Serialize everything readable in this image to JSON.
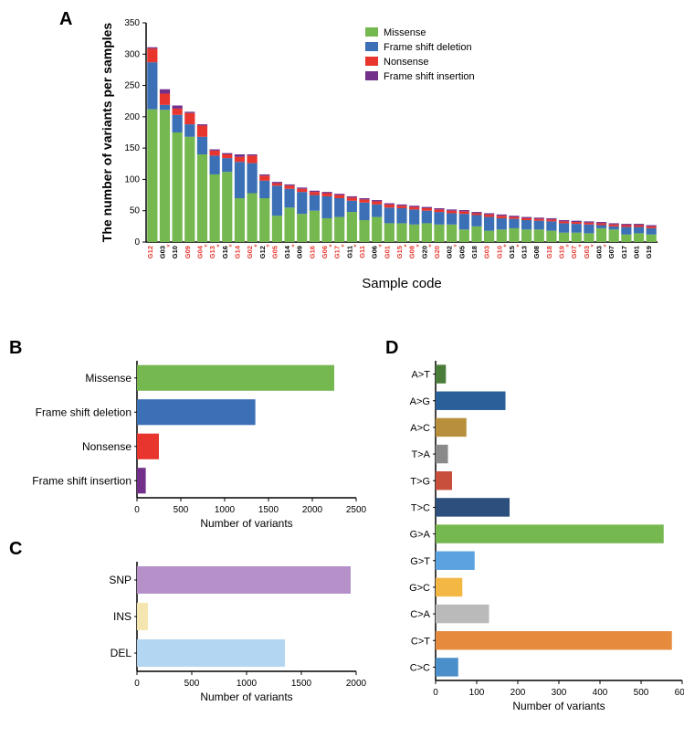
{
  "panelA": {
    "label": "A",
    "ylabel": "The number of variants per samples",
    "xlabel": "Sample code",
    "ylim": [
      0,
      350
    ],
    "ytick_step": 50,
    "colors": {
      "missense": "#75b84f",
      "frameshift_deletion": "#3b6fb6",
      "nonsense": "#e8352e",
      "frameshift_insertion": "#73308a"
    },
    "legend": [
      {
        "label": "Missense",
        "color": "#75b84f"
      },
      {
        "label": "Frame shift deletion",
        "color": "#3b6fb6"
      },
      {
        "label": "Nonsense",
        "color": "#e8352e"
      },
      {
        "label": "Frame shift insertion",
        "color": "#73308a"
      }
    ],
    "samples": [
      {
        "code": "G12",
        "star": true,
        "missense": 212,
        "fsdel": 75,
        "nonsense": 22,
        "fsins": 2
      },
      {
        "code": "G03",
        "star": false,
        "missense": 211,
        "fsdel": 8,
        "nonsense": 18,
        "fsins": 7
      },
      {
        "code": "G10",
        "star": false,
        "missense": 175,
        "fsdel": 28,
        "nonsense": 10,
        "fsins": 5
      },
      {
        "code": "G09",
        "star": true,
        "missense": 168,
        "fsdel": 20,
        "nonsense": 18,
        "fsins": 2
      },
      {
        "code": "G04",
        "star": true,
        "missense": 140,
        "fsdel": 28,
        "nonsense": 18,
        "fsins": 2
      },
      {
        "code": "G13",
        "star": true,
        "missense": 108,
        "fsdel": 30,
        "nonsense": 8,
        "fsins": 2
      },
      {
        "code": "G16",
        "star": false,
        "missense": 112,
        "fsdel": 22,
        "nonsense": 6,
        "fsins": 2
      },
      {
        "code": "G14",
        "star": true,
        "missense": 70,
        "fsdel": 58,
        "nonsense": 8,
        "fsins": 4
      },
      {
        "code": "G02",
        "star": true,
        "missense": 78,
        "fsdel": 48,
        "nonsense": 12,
        "fsins": 2
      },
      {
        "code": "G12",
        "star": false,
        "missense": 70,
        "fsdel": 28,
        "nonsense": 8,
        "fsins": 2
      },
      {
        "code": "G05",
        "star": true,
        "missense": 42,
        "fsdel": 48,
        "nonsense": 4,
        "fsins": 2
      },
      {
        "code": "G14",
        "star": false,
        "missense": 55,
        "fsdel": 30,
        "nonsense": 5,
        "fsins": 2
      },
      {
        "code": "G09",
        "star": false,
        "missense": 45,
        "fsdel": 35,
        "nonsense": 5,
        "fsins": 2
      },
      {
        "code": "G16",
        "star": true,
        "missense": 50,
        "fsdel": 25,
        "nonsense": 5,
        "fsins": 2
      },
      {
        "code": "G06",
        "star": true,
        "missense": 38,
        "fsdel": 35,
        "nonsense": 5,
        "fsins": 2
      },
      {
        "code": "G17",
        "star": true,
        "missense": 40,
        "fsdel": 30,
        "nonsense": 5,
        "fsins": 2
      },
      {
        "code": "G11",
        "star": false,
        "missense": 48,
        "fsdel": 18,
        "nonsense": 5,
        "fsins": 2
      },
      {
        "code": "G11",
        "star": true,
        "missense": 35,
        "fsdel": 28,
        "nonsense": 5,
        "fsins": 2
      },
      {
        "code": "G06",
        "star": false,
        "missense": 40,
        "fsdel": 20,
        "nonsense": 5,
        "fsins": 2
      },
      {
        "code": "G01",
        "star": true,
        "missense": 30,
        "fsdel": 25,
        "nonsense": 5,
        "fsins": 2
      },
      {
        "code": "G15",
        "star": true,
        "missense": 30,
        "fsdel": 24,
        "nonsense": 4,
        "fsins": 2
      },
      {
        "code": "G08",
        "star": true,
        "missense": 28,
        "fsdel": 24,
        "nonsense": 4,
        "fsins": 2
      },
      {
        "code": "G20",
        "star": false,
        "missense": 30,
        "fsdel": 20,
        "nonsense": 4,
        "fsins": 2
      },
      {
        "code": "G20",
        "star": true,
        "missense": 28,
        "fsdel": 20,
        "nonsense": 4,
        "fsins": 2
      },
      {
        "code": "G02",
        "star": false,
        "missense": 28,
        "fsdel": 18,
        "nonsense": 4,
        "fsins": 2
      },
      {
        "code": "G05",
        "star": false,
        "missense": 20,
        "fsdel": 25,
        "nonsense": 4,
        "fsins": 2
      },
      {
        "code": "G18",
        "star": false,
        "missense": 25,
        "fsdel": 18,
        "nonsense": 3,
        "fsins": 2
      },
      {
        "code": "G03",
        "star": true,
        "missense": 18,
        "fsdel": 22,
        "nonsense": 4,
        "fsins": 2
      },
      {
        "code": "G10",
        "star": true,
        "missense": 20,
        "fsdel": 18,
        "nonsense": 4,
        "fsins": 2
      },
      {
        "code": "G15",
        "star": false,
        "missense": 22,
        "fsdel": 15,
        "nonsense": 3,
        "fsins": 2
      },
      {
        "code": "G13",
        "star": false,
        "missense": 20,
        "fsdel": 15,
        "nonsense": 3,
        "fsins": 2
      },
      {
        "code": "G08",
        "star": false,
        "missense": 20,
        "fsdel": 14,
        "nonsense": 3,
        "fsins": 2
      },
      {
        "code": "G18",
        "star": true,
        "missense": 18,
        "fsdel": 15,
        "nonsense": 3,
        "fsins": 2
      },
      {
        "code": "G19",
        "star": true,
        "missense": 15,
        "fsdel": 15,
        "nonsense": 3,
        "fsins": 2
      },
      {
        "code": "G07",
        "star": true,
        "missense": 15,
        "fsdel": 14,
        "nonsense": 3,
        "fsins": 2
      },
      {
        "code": "G03",
        "star": true,
        "missense": 14,
        "fsdel": 14,
        "nonsense": 3,
        "fsins": 2
      },
      {
        "code": "G03",
        "star": false,
        "missense": 22,
        "fsdel": 5,
        "nonsense": 3,
        "fsins": 2
      },
      {
        "code": "G07",
        "star": false,
        "missense": 20,
        "fsdel": 5,
        "nonsense": 3,
        "fsins": 2
      },
      {
        "code": "G17",
        "star": false,
        "missense": 12,
        "fsdel": 12,
        "nonsense": 3,
        "fsins": 2
      },
      {
        "code": "G01",
        "star": false,
        "missense": 14,
        "fsdel": 10,
        "nonsense": 3,
        "fsins": 2
      },
      {
        "code": "G19",
        "star": false,
        "missense": 12,
        "fsdel": 10,
        "nonsense": 3,
        "fsins": 2
      }
    ]
  },
  "panelB": {
    "label": "B",
    "xlabel": "Number of variants",
    "xlim": [
      0,
      2500
    ],
    "xtick_step": 500,
    "categories": [
      {
        "label": "Missense",
        "value": 2250,
        "color": "#75b84f"
      },
      {
        "label": "Frame shift deletion",
        "value": 1350,
        "color": "#3b6fb6"
      },
      {
        "label": "Nonsense",
        "value": 250,
        "color": "#e8352e"
      },
      {
        "label": "Frame shift insertion",
        "value": 100,
        "color": "#73308a"
      }
    ]
  },
  "panelC": {
    "label": "C",
    "xlabel": "Number of variants",
    "xlim": [
      0,
      2000
    ],
    "xtick_step": 500,
    "categories": [
      {
        "label": "SNP",
        "value": 1950,
        "color": "#b691c9"
      },
      {
        "label": "INS",
        "value": 100,
        "color": "#f5e5b0"
      },
      {
        "label": "DEL",
        "value": 1350,
        "color": "#b3d6f2"
      }
    ]
  },
  "panelD": {
    "label": "D",
    "xlabel": "Number of variants",
    "xlim": [
      0,
      600
    ],
    "xtick_step": 100,
    "categories": [
      {
        "label": "A>T",
        "value": 25,
        "color": "#4a7d3a"
      },
      {
        "label": "A>G",
        "value": 170,
        "color": "#2a6099"
      },
      {
        "label": "A>C",
        "value": 75,
        "color": "#b8903d"
      },
      {
        "label": "T>A",
        "value": 30,
        "color": "#8a8a8a"
      },
      {
        "label": "T>G",
        "value": 40,
        "color": "#c94f3d"
      },
      {
        "label": "T>C",
        "value": 180,
        "color": "#2d4f7d"
      },
      {
        "label": "G>A",
        "value": 555,
        "color": "#75b84f"
      },
      {
        "label": "G>T",
        "value": 95,
        "color": "#5ba3e0"
      },
      {
        "label": "G>C",
        "value": 65,
        "color": "#f2b843"
      },
      {
        "label": "C>A",
        "value": 130,
        "color": "#bababa"
      },
      {
        "label": "C>T",
        "value": 575,
        "color": "#e68a3d"
      },
      {
        "label": "C>C",
        "value": 55,
        "color": "#4a8fc9"
      }
    ]
  }
}
